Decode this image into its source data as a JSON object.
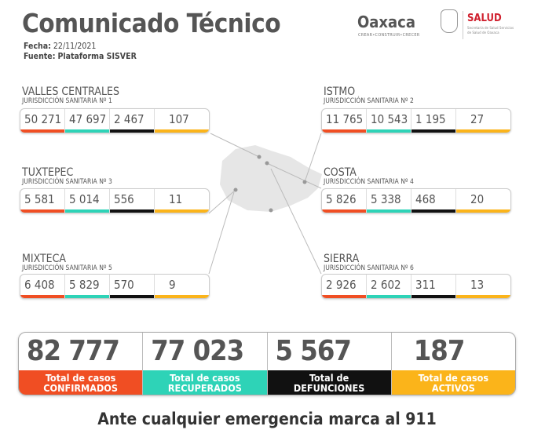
{
  "header": {
    "title": "Comunicado Técnico",
    "date_label": "Fecha:",
    "date": "22/11/2021",
    "source_label": "Fuente:",
    "source": "Plataforma SISVER"
  },
  "logos": {
    "oaxaca": "Oaxaca",
    "oaxaca_tagline": "CREAR•CONSTRUIR•CRECER",
    "salud": "SALUD",
    "salud_sub": "Secretaría de Salud Servicios de Salud de Oaxaca"
  },
  "colors": {
    "confirmados": "#f04e23",
    "recuperados": "#2ed3b7",
    "defunciones": "#111111",
    "activos": "#fbb41a"
  },
  "regions": [
    {
      "name": "VALLES CENTRALES",
      "sub": "JURISDICCIÓN SANITARIA Nº 1",
      "values": [
        "50 271",
        "47 697",
        "2 467",
        "107"
      ]
    },
    {
      "name": "ISTMO",
      "sub": "JURISDICCIÓN SANITARIA Nº 2",
      "values": [
        "11 765",
        "10 543",
        "1 195",
        "27"
      ]
    },
    {
      "name": "TUXTEPEC",
      "sub": "JURISDICCIÓN SANITARIA Nº 3",
      "values": [
        "5 581",
        "5 014",
        "556",
        "11"
      ]
    },
    {
      "name": "COSTA",
      "sub": "JURISDICCIÓN SANITARIA Nº 4",
      "values": [
        "5 826",
        "5 338",
        "468",
        "20"
      ]
    },
    {
      "name": "MIXTECA",
      "sub": "JURISDICCIÓN SANITARIA Nº 5",
      "values": [
        "6 408",
        "5 829",
        "570",
        "9"
      ]
    },
    {
      "name": "SIERRA",
      "sub": "JURISDICCIÓN SANITARIA Nº 6",
      "values": [
        "2 926",
        "2 602",
        "311",
        "13"
      ]
    }
  ],
  "totals": [
    {
      "value": "82 777",
      "line1": "Total de casos",
      "line2": "CONFIRMADOS"
    },
    {
      "value": "77 023",
      "line1": "Total de casos",
      "line2": "RECUPERADOS"
    },
    {
      "value": "5 567",
      "line1": "Total de",
      "line2": "DEFUNCIONES"
    },
    {
      "value": "187",
      "line1": "Total de casos",
      "line2": "ACTIVOS"
    }
  ],
  "footer": "Ante cualquier emergencia marca al 911"
}
